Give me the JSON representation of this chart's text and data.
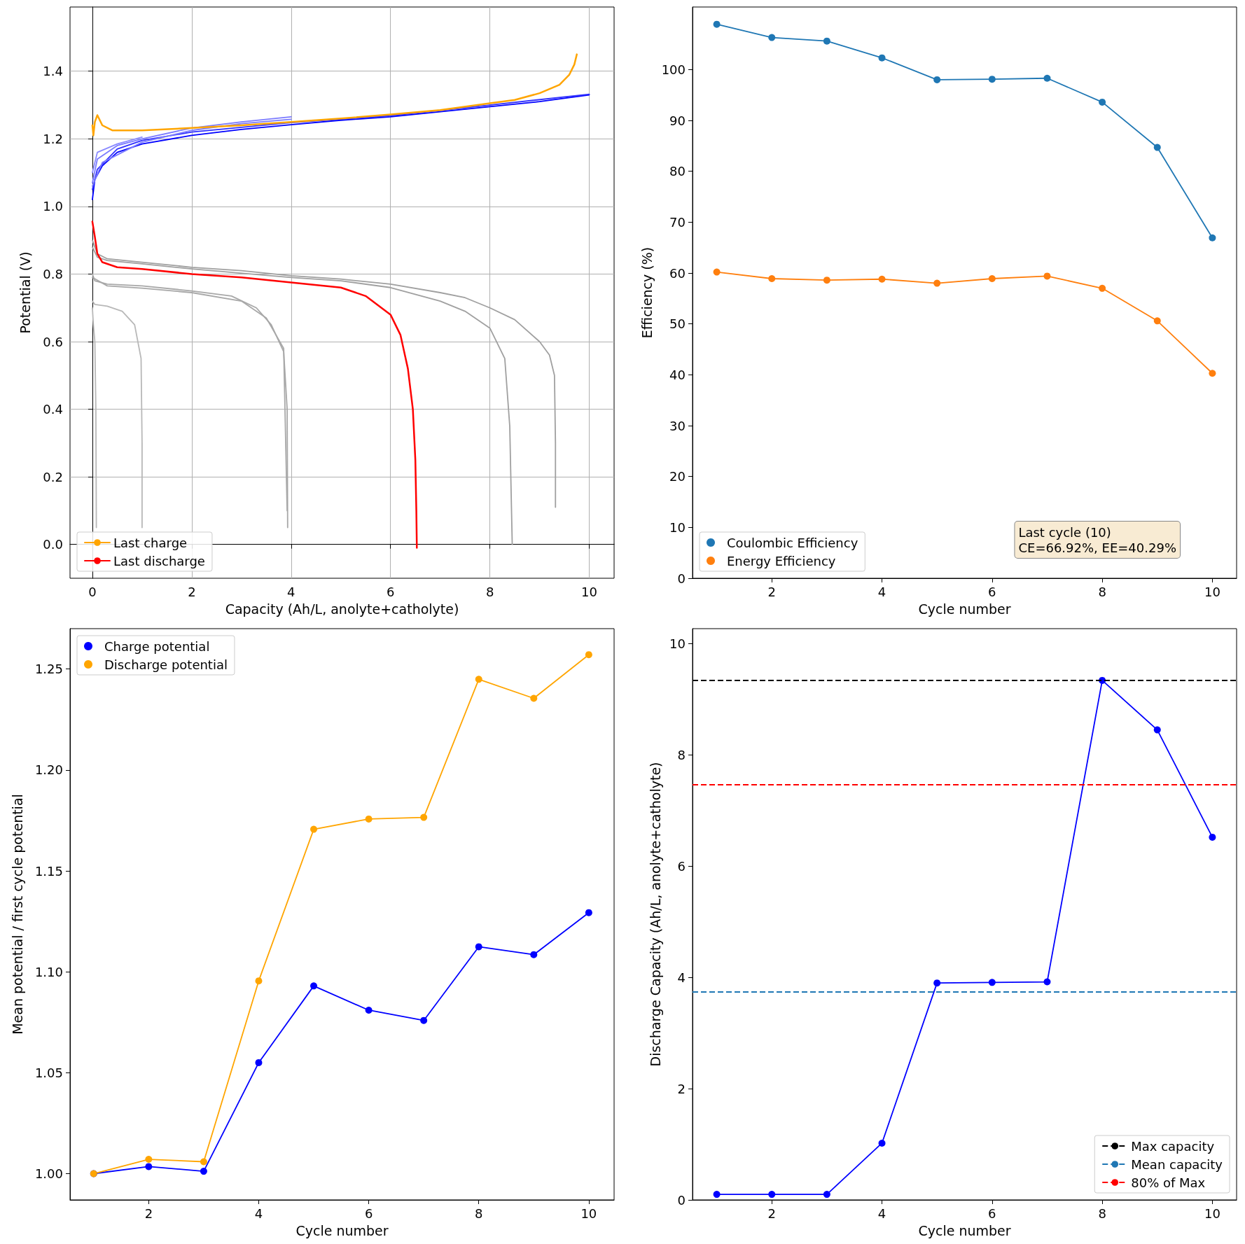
{
  "chart_data": [
    {
      "type": "line",
      "xlabel": "Capacity (Ah/L, anolyte+catholyte)",
      "ylabel": "Potential (V)",
      "xlim": [
        -0.45,
        10.5
      ],
      "xticks": [
        0,
        2,
        4,
        6,
        8,
        10
      ],
      "ylim": [
        -0.1,
        1.59
      ],
      "yticks": [
        {
          "value": 0,
          "label": "0.0"
        },
        0.2,
        0.4,
        0.6,
        0.8,
        {
          "value": 1,
          "label": "1.0"
        },
        1.2,
        1.4
      ],
      "grid": true,
      "legend": "bottom left",
      "line_style": "solid",
      "marker": "none",
      "series": [
        {
          "color": "#0000ff",
          "x": [
            0,
            0.05,
            0.2,
            0.5,
            1,
            2,
            3,
            4,
            5,
            6,
            7,
            8,
            9,
            10
          ],
          "values": [
            1.02,
            1.08,
            1.12,
            1.16,
            1.185,
            1.21,
            1.228,
            1.242,
            1.255,
            1.265,
            1.28,
            1.295,
            1.31,
            1.33
          ]
        },
        {
          "color": "#3030ff",
          "x": [
            0,
            0.1,
            0.5,
            1,
            2,
            4,
            6,
            8,
            10
          ],
          "values": [
            1.05,
            1.11,
            1.17,
            1.195,
            1.22,
            1.248,
            1.268,
            1.3,
            1.332
          ]
        },
        {
          "color": "#7b7bff",
          "x": [
            0,
            0.1,
            0.5,
            1,
            2,
            3,
            4
          ],
          "values": [
            1.07,
            1.14,
            1.18,
            1.2,
            1.232,
            1.25,
            1.265
          ]
        },
        {
          "color": "#7b7bff",
          "x": [
            0,
            0.2,
            1,
            2,
            3,
            4
          ],
          "values": [
            1.06,
            1.13,
            1.19,
            1.225,
            1.245,
            1.258
          ]
        },
        {
          "color": "#8a8aff",
          "x": [
            0,
            0.1,
            0.5,
            1
          ],
          "values": [
            1.1,
            1.16,
            1.185,
            1.205
          ]
        },
        {
          "color": "#a0a0a0",
          "x": [
            0,
            0.1,
            0.3,
            1,
            2,
            3,
            4,
            5,
            6,
            7,
            7.5,
            8,
            8.5,
            9,
            9.2,
            9.3,
            9.32,
            9.32
          ],
          "values": [
            0.9,
            0.86,
            0.845,
            0.835,
            0.82,
            0.81,
            0.795,
            0.785,
            0.77,
            0.745,
            0.73,
            0.7,
            0.665,
            0.6,
            0.56,
            0.5,
            0.3,
            0.11
          ]
        },
        {
          "color": "#a0a0a0",
          "x": [
            0,
            0.1,
            0.3,
            1,
            2,
            4,
            5,
            6,
            7,
            7.5,
            8,
            8.3,
            8.4,
            8.45
          ],
          "values": [
            0.88,
            0.85,
            0.84,
            0.83,
            0.815,
            0.79,
            0.78,
            0.76,
            0.72,
            0.69,
            0.64,
            0.55,
            0.35,
            0.0
          ]
        },
        {
          "color": "#a8a8a8",
          "x": [
            0,
            0.05,
            0.3,
            1,
            2,
            2.8,
            3.3,
            3.6,
            3.85,
            3.92,
            3.93
          ],
          "values": [
            0.8,
            0.78,
            0.77,
            0.765,
            0.75,
            0.735,
            0.7,
            0.65,
            0.57,
            0.4,
            0.05
          ]
        },
        {
          "color": "#a8a8a8",
          "x": [
            0,
            0.3,
            1,
            2,
            3,
            3.5,
            3.85,
            3.92
          ],
          "values": [
            0.79,
            0.765,
            0.758,
            0.745,
            0.72,
            0.67,
            0.58,
            0.1
          ]
        },
        {
          "color": "#b8b8b8",
          "x": [
            0,
            0.05,
            0.3,
            0.6,
            0.85,
            0.98,
            1.0,
            1.0
          ],
          "values": [
            0.72,
            0.71,
            0.705,
            0.69,
            0.65,
            0.55,
            0.3,
            0.05
          ]
        },
        {
          "color": "#b8b8b8",
          "x": [
            0,
            0.02,
            0.05,
            0.07,
            0.08
          ],
          "values": [
            0.7,
            0.65,
            0.6,
            0.4,
            0.05
          ]
        },
        {
          "name": "Last charge",
          "color": "#ffa500",
          "x": [
            0,
            0.02,
            0.05,
            0.1,
            0.2,
            0.4,
            1,
            2,
            3,
            4,
            5,
            6,
            7,
            8,
            8.5,
            9,
            9.4,
            9.6,
            9.7,
            9.75
          ],
          "values": [
            1.24,
            1.21,
            1.25,
            1.27,
            1.24,
            1.225,
            1.225,
            1.232,
            1.24,
            1.25,
            1.26,
            1.272,
            1.285,
            1.305,
            1.315,
            1.335,
            1.36,
            1.39,
            1.42,
            1.45
          ]
        },
        {
          "name": "Last discharge",
          "color": "#ff0000",
          "x": [
            0,
            0.05,
            0.1,
            0.2,
            0.5,
            1,
            2,
            3,
            4,
            5,
            5.5,
            6,
            6.2,
            6.35,
            6.45,
            6.5,
            6.52,
            6.53
          ],
          "values": [
            0.955,
            0.91,
            0.86,
            0.835,
            0.82,
            0.815,
            0.8,
            0.79,
            0.775,
            0.76,
            0.735,
            0.68,
            0.62,
            0.52,
            0.4,
            0.25,
            0.1,
            -0.01
          ]
        }
      ]
    },
    {
      "type": "line",
      "xlabel": "Cycle number",
      "ylabel": "Efficiency (%)",
      "x": [
        1,
        2,
        3,
        4,
        5,
        6,
        7,
        8,
        9,
        10
      ],
      "xlim": [
        0.56,
        10.44
      ],
      "xticks": [
        2,
        4,
        6,
        8,
        10
      ],
      "ylim": [
        0,
        112.3
      ],
      "yticks": [
        0,
        10,
        20,
        30,
        40,
        50,
        60,
        70,
        80,
        90,
        100
      ],
      "legend": "bottom left",
      "marker": "circle",
      "line_style": "solid",
      "annotations": [
        "Last cycle (10)\nCE=66.92%, EE=40.29%"
      ],
      "series": [
        {
          "name": "Coulombic Efficiency",
          "color": "#1f77b4",
          "values": [
            108.9,
            106.3,
            105.6,
            102.3,
            98.0,
            98.1,
            98.3,
            93.6,
            84.7,
            66.92
          ]
        },
        {
          "name": "Energy Efficiency",
          "color": "#ff7f0e",
          "values": [
            60.2,
            58.9,
            58.6,
            58.8,
            58.0,
            58.9,
            59.4,
            57.0,
            50.6,
            40.29
          ]
        }
      ]
    },
    {
      "type": "line",
      "xlabel": "Cycle number",
      "ylabel": "Mean potential / first cycle potential",
      "x": [
        1,
        2,
        3,
        4,
        5,
        6,
        7,
        8,
        9,
        10
      ],
      "xlim": [
        0.57,
        10.46
      ],
      "xticks": [
        2,
        4,
        6,
        8,
        10
      ],
      "ylim": [
        0.987,
        1.27
      ],
      "yticks": [
        {
          "value": 1,
          "label": "1.00"
        },
        1.05,
        {
          "value": 1.1,
          "label": "1.10"
        },
        1.15,
        {
          "value": 1.2,
          "label": "1.20"
        },
        1.25
      ],
      "legend": "top left",
      "marker": "circle",
      "line_style": "solid",
      "series": [
        {
          "name": "Charge potential",
          "color": "#0000ff",
          "values": [
            1.0,
            1.0035,
            1.0012,
            1.055,
            1.093,
            1.081,
            1.0759,
            1.1124,
            1.1085,
            1.1293
          ]
        },
        {
          "name": "Discharge potential",
          "color": "#ffa500",
          "values": [
            1.0,
            1.0071,
            1.0059,
            1.0955,
            1.1706,
            1.1757,
            1.1765,
            1.2449,
            1.2355,
            1.2571
          ]
        }
      ]
    },
    {
      "type": "line",
      "xlabel": "Cycle number",
      "ylabel": "Discharge Capacity (Ah/L, anolyte+catholyte)",
      "x": [
        1,
        2,
        3,
        4,
        5,
        6,
        7,
        8,
        9,
        10
      ],
      "xlim": [
        0.56,
        10.44
      ],
      "xticks": [
        2,
        4,
        6,
        8,
        10
      ],
      "ylim": [
        0,
        10.27
      ],
      "yticks": [
        0,
        2,
        4,
        6,
        8,
        10
      ],
      "legend": "bottom right",
      "marker": "circle",
      "line_style": "solid",
      "series": [
        {
          "color": "#0000ff",
          "values": [
            0.1,
            0.1,
            0.1,
            1.02,
            3.9,
            3.91,
            3.92,
            9.34,
            8.45,
            6.52
          ]
        }
      ],
      "ref_lines": [
        {
          "axis": "y",
          "value": 9.34,
          "label": "Max capacity",
          "color": "#000000",
          "line_style": "dashed"
        },
        {
          "axis": "y",
          "value": 3.74,
          "label": "Mean capacity",
          "color": "#1f77b4",
          "line_style": "dashed"
        },
        {
          "axis": "y",
          "value": 7.47,
          "label": "80% of Max",
          "color": "#ff0000",
          "line_style": "dashed"
        }
      ]
    }
  ]
}
